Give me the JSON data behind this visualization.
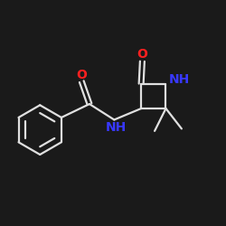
{
  "bg_color": "#1a1a1a",
  "bond_color": "#e0e0e0",
  "atom_colors": {
    "O": "#ff2020",
    "N": "#3838ff",
    "C": "#e0e0e0"
  },
  "figsize": [
    2.5,
    2.5
  ],
  "dpi": 100
}
